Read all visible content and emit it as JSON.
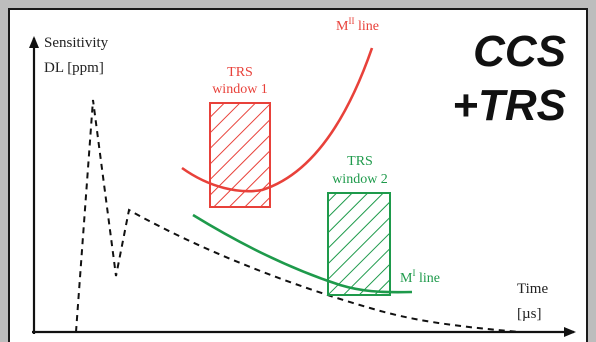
{
  "title": {
    "line1": "CCS",
    "line2": "+TRS"
  },
  "axes": {
    "y_label_line1": "Sensitivity",
    "y_label_line2": "DL  [ppm]",
    "x_label_line1": "Time",
    "x_label_line2": "[µs]"
  },
  "curves": {
    "mii_label_base": "M",
    "mii_label_sup": "II",
    "mii_label_rest": " line",
    "mi_label_base": "M",
    "mi_label_sup": "I",
    "mi_label_rest": " line"
  },
  "windows": {
    "window1_line1": "TRS",
    "window1_line2": "window 1",
    "window2_line1": "TRS",
    "window2_line2": "window 2"
  },
  "colors": {
    "red": "#e8413a",
    "green": "#1e9a4b",
    "axis": "#111111",
    "dashed": "#111111"
  }
}
